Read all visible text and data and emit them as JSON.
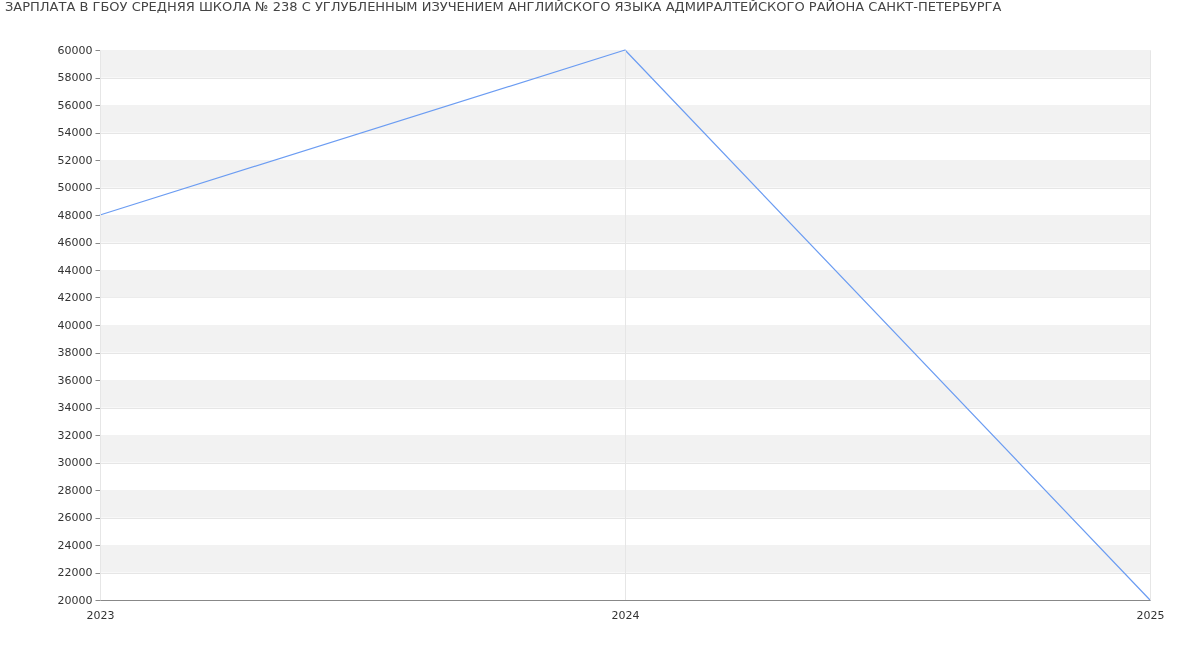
{
  "chart_data": {
    "type": "line",
    "title": "ЗАРПЛАТА В ГБОУ СРЕДНЯЯ ШКОЛА № 238 С УГЛУБЛЕННЫМ ИЗУЧЕНИЕМ АНГЛИЙСКОГО ЯЗЫКА АДМИРАЛТЕЙСКОГО РАЙОНА САНКТ-ПЕТЕРБУРГА",
    "categories": [
      "2023",
      "2024",
      "2025"
    ],
    "values": [
      48000,
      60000,
      20000
    ],
    "color": "#6b9cf2",
    "ylim": [
      20000,
      60000
    ],
    "yticks": [
      20000,
      22000,
      24000,
      26000,
      28000,
      30000,
      32000,
      34000,
      36000,
      38000,
      40000,
      42000,
      44000,
      46000,
      48000,
      50000,
      52000,
      54000,
      56000,
      58000,
      60000
    ],
    "grid": true
  }
}
